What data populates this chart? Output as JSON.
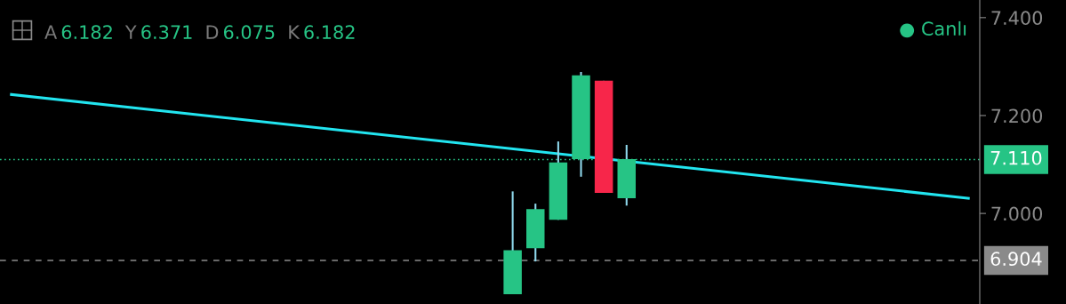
{
  "chart_data": {
    "type": "candlestick",
    "categories": [
      null,
      null,
      null,
      null,
      null,
      null,
      null,
      null,
      null,
      null,
      null,
      null,
      null,
      null,
      null,
      null,
      null,
      null,
      null,
      null,
      null,
      null,
      null,
      null,
      null,
      null,
      null,
      null,
      null,
      null,
      null,
      null,
      null,
      null,
      null,
      null,
      null,
      null,
      null,
      null,
      null,
      null,
      null
    ],
    "ylim": [
      6.815,
      7.436
    ],
    "yticks": [
      {
        "value": 7.0,
        "label": "7.000"
      },
      {
        "value": 7.2,
        "label": "7.200"
      },
      {
        "value": 7.4,
        "label": "7.400"
      }
    ],
    "tick_labels": "y",
    "grid": false,
    "legend": false,
    "series": [
      {
        "colors": [
          null,
          null,
          null,
          null,
          null,
          null,
          null,
          null,
          null,
          null,
          null,
          null,
          null,
          null,
          null,
          null,
          null,
          null,
          null,
          null,
          null,
          null,
          "#26c485",
          "#26c485",
          "#26c485",
          "#26c485",
          "#f7264a",
          "#26c485",
          null,
          null,
          null,
          null,
          null,
          null,
          null,
          null,
          null,
          null,
          null,
          null,
          null,
          null,
          null
        ],
        "ohlc": [
          null,
          null,
          null,
          null,
          null,
          null,
          null,
          null,
          null,
          null,
          null,
          null,
          null,
          null,
          null,
          null,
          null,
          null,
          null,
          null,
          null,
          null,
          [
            6.835,
            7.045,
            6.835,
            6.925
          ],
          [
            6.929,
            7.02,
            6.902,
            7.009
          ],
          [
            6.987,
            7.147,
            6.987,
            7.104
          ],
          [
            7.111,
            7.289,
            7.075,
            7.282
          ],
          [
            7.271,
            7.271,
            7.042,
            7.042
          ],
          [
            7.031,
            7.14,
            7.016,
            7.111
          ],
          null,
          null,
          null,
          null,
          null,
          null,
          null,
          null,
          null,
          null,
          null,
          null,
          null,
          null,
          null
        ]
      },
      {
        "type": "line",
        "values": [
          7.243,
          null,
          null,
          null,
          null,
          null,
          null,
          null,
          null,
          null,
          null,
          null,
          null,
          null,
          null,
          null,
          null,
          null,
          null,
          null,
          null,
          null,
          null,
          null,
          null,
          null,
          null,
          null,
          null,
          null,
          null,
          null,
          null,
          null,
          null,
          null,
          null,
          null,
          null,
          null,
          null,
          null,
          7.031
        ],
        "color": "#22e5f0"
      }
    ],
    "ref_lines": [
      {
        "axis": "y",
        "value": 7.11,
        "label": "7.110",
        "color": "#26c485",
        "line_style": "dotted"
      },
      {
        "axis": "y",
        "value": 6.904,
        "label": "6.904",
        "color": "#8a8a8a",
        "line_style": "dashed"
      }
    ],
    "annotations": [
      "A",
      "6.182",
      "Y",
      "6.371",
      "D",
      "6.075",
      "K",
      "6.182",
      "● Canlı"
    ]
  }
}
